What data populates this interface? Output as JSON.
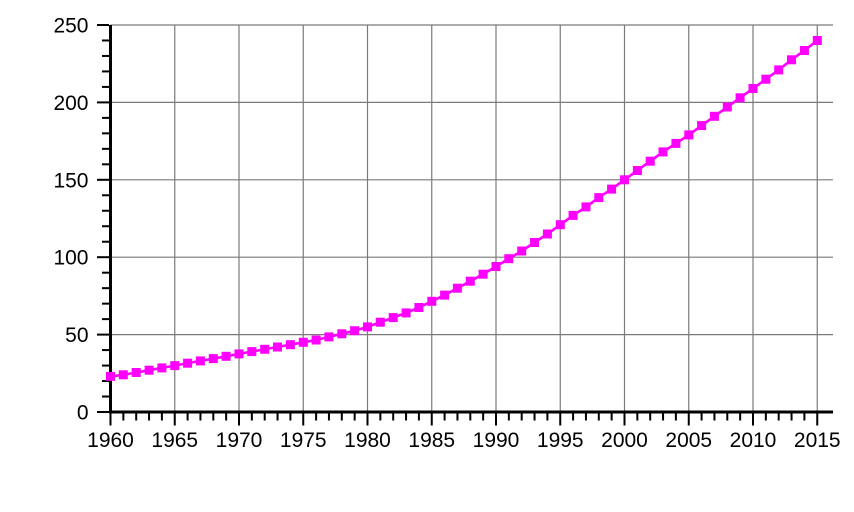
{
  "chart_data": {
    "type": "line",
    "title": "",
    "xlabel": "",
    "ylabel": "",
    "legend": "none",
    "grid": true,
    "marker_shape": "square",
    "line_color": "#FF00FF",
    "marker_color": "#FF00FF",
    "grid_color": "#7A7A7A",
    "axis_color": "#000000",
    "tick_label_color": "#000000",
    "background_color": "#FFFFFF",
    "xlim": [
      1960,
      2016.5
    ],
    "ylim": [
      0,
      250
    ],
    "x_major_tick_labels": [
      "1960",
      "1965",
      "1970",
      "1975",
      "1980",
      "1985",
      "1990",
      "1995",
      "2000",
      "2005",
      "2010",
      "2015"
    ],
    "x_major_ticks": [
      1960,
      1965,
      1970,
      1975,
      1980,
      1985,
      1990,
      1995,
      2000,
      2005,
      2010,
      2015
    ],
    "x_minor_tick_step_years": 1,
    "y_major_tick_labels": [
      "0",
      "50",
      "100",
      "150",
      "200",
      "250"
    ],
    "y_major_ticks": [
      0,
      50,
      100,
      150,
      200,
      250
    ],
    "y_minor_tick_step": 10,
    "x": [
      1960,
      1961,
      1962,
      1963,
      1964,
      1965,
      1966,
      1967,
      1968,
      1969,
      1970,
      1971,
      1972,
      1973,
      1974,
      1975,
      1976,
      1977,
      1978,
      1979,
      1980,
      1981,
      1982,
      1983,
      1984,
      1985,
      1986,
      1987,
      1988,
      1989,
      1990,
      1991,
      1992,
      1993,
      1994,
      1995,
      1996,
      1997,
      1998,
      1999,
      2000,
      2001,
      2002,
      2003,
      2004,
      2005,
      2006,
      2007,
      2008,
      2009,
      2010,
      2011,
      2012,
      2013,
      2014,
      2015
    ],
    "values": [
      23,
      24,
      25.5,
      27,
      28.5,
      30,
      31.5,
      33,
      34.5,
      36,
      37.5,
      39,
      40.5,
      42,
      43.5,
      45,
      46.5,
      48.5,
      50.5,
      52.5,
      55,
      58,
      61,
      64,
      67.5,
      71.5,
      75.5,
      80,
      84.5,
      89,
      94,
      99,
      104,
      109.5,
      115,
      121,
      127,
      132.5,
      138.5,
      144,
      150,
      156,
      162,
      168,
      173.5,
      179,
      185,
      191,
      197,
      203,
      209,
      215,
      221,
      227.5,
      233.5,
      240
    ]
  }
}
